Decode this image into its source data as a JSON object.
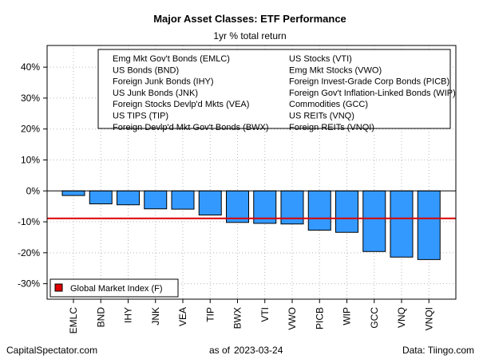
{
  "chart_data": {
    "type": "bar",
    "title": "Major Asset Classes: ETF Performance",
    "subtitle": "1yr % total return",
    "categories": [
      "EMLC",
      "BND",
      "IHY",
      "JNK",
      "VEA",
      "TIP",
      "BWX",
      "VTI",
      "VWO",
      "PICB",
      "WIP",
      "GCC",
      "VNQ",
      "VNQI"
    ],
    "values": [
      -1.5,
      -4.2,
      -4.5,
      -5.8,
      -5.9,
      -7.8,
      -10.2,
      -10.5,
      -10.7,
      -12.7,
      -13.4,
      -19.6,
      -21.4,
      -22.2
    ],
    "ylim": [
      -35,
      47
    ],
    "yticks": [
      -30,
      -20,
      -10,
      0,
      10,
      20,
      30,
      40
    ],
    "ytick_labels": [
      "-30%",
      "-20%",
      "-10%",
      "0%",
      "10%",
      "20%",
      "30%",
      "40%"
    ],
    "benchmark": {
      "name": "Global Market Index (F)",
      "value": -8.9,
      "color": "#dd0000"
    },
    "bar_color": "#3399ff",
    "grid": true,
    "legend_placement": "top",
    "legend": [
      "Emg Mkt Gov't Bonds (EMLC)",
      "US Bonds (BND)",
      "Foreign Junk Bonds (IHY)",
      "US Junk Bonds (JNK)",
      "Foreign Stocks Devlp'd Mkts (VEA)",
      "US TIPS (TIP)",
      "Foreign Devlp'd Mkt Gov't Bonds (BWX)",
      "US Stocks (VTI)",
      "Emg Mkt Stocks (VWO)",
      "Foreign Invest-Grade Corp Bonds (PICB)",
      "Foreign Gov't Inflation-Linked Bonds (WIP)",
      "Commodities (GCC)",
      "US REITs (VNQ)",
      "Foreign REITs (VNQI)"
    ]
  },
  "footer": {
    "source_left": "CapitalSpectator.com",
    "as_of_label": "as of",
    "date": "2023-03-24",
    "data_source": "Data: Tiingo.com"
  }
}
